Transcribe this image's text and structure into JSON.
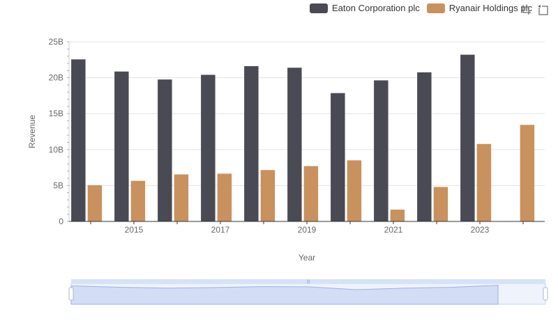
{
  "chart_data": {
    "type": "bar",
    "x": [
      "2014",
      "2015",
      "2016",
      "2017",
      "2018",
      "2019",
      "2020",
      "2021",
      "2022",
      "2023",
      "2024"
    ],
    "x_tick_labels": [
      "2015",
      "2017",
      "2019",
      "2021",
      "2023"
    ],
    "series": [
      {
        "name": "Eaton Corporation plc",
        "color": "#4a4a55",
        "values": [
          22.55,
          20.86,
          19.75,
          20.4,
          21.61,
          21.39,
          17.86,
          19.63,
          20.75,
          23.2,
          null
        ]
      },
      {
        "name": "Ryanair Holdings plc",
        "color": "#c9915e",
        "values": [
          5.04,
          5.65,
          6.54,
          6.65,
          7.15,
          7.7,
          8.5,
          1.64,
          4.8,
          10.78,
          13.44
        ]
      }
    ],
    "ylabel": "Revenue",
    "xlabel": "Year",
    "ylim": [
      0,
      25
    ],
    "y_ticks": [
      0,
      5,
      10,
      15,
      20,
      25
    ],
    "y_tick_labels": [
      "0",
      "5B",
      "10B",
      "15B",
      "20B",
      "25B"
    ],
    "grid": true,
    "legend_position": "top-right"
  },
  "legend": {
    "items": [
      {
        "label": "Eaton Corporation plc",
        "color": "#4a4a55"
      },
      {
        "label": "Ryanair Holdings plc",
        "color": "#c9915e"
      }
    ]
  },
  "toolbox": {
    "icons": [
      "zoom-icon",
      "restore-icon"
    ]
  },
  "data_zoom": {
    "range_percent": [
      0,
      100
    ]
  }
}
